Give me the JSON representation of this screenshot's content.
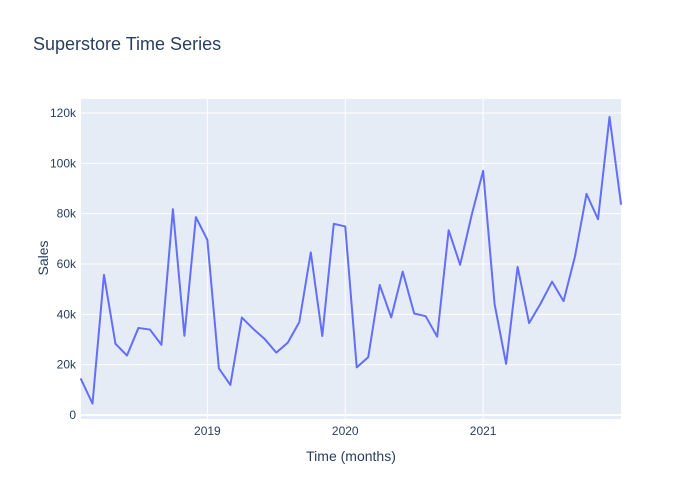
{
  "chart_data": {
    "type": "line",
    "title": "Superstore Time Series",
    "xlabel": "Time (months)",
    "ylabel": "Sales",
    "legend": "none",
    "grid": true,
    "ylim": [
      -1600,
      125600
    ],
    "x": [
      "2018-01",
      "2018-02",
      "2018-03",
      "2018-04",
      "2018-05",
      "2018-06",
      "2018-07",
      "2018-08",
      "2018-09",
      "2018-10",
      "2018-11",
      "2018-12",
      "2019-01",
      "2019-02",
      "2019-03",
      "2019-04",
      "2019-05",
      "2019-06",
      "2019-07",
      "2019-08",
      "2019-09",
      "2019-10",
      "2019-11",
      "2019-12",
      "2020-01",
      "2020-02",
      "2020-03",
      "2020-04",
      "2020-05",
      "2020-06",
      "2020-07",
      "2020-08",
      "2020-09",
      "2020-10",
      "2020-11",
      "2020-12",
      "2021-01",
      "2021-02",
      "2021-03",
      "2021-04",
      "2021-05",
      "2021-06",
      "2021-07",
      "2021-08",
      "2021-09",
      "2021-10",
      "2021-11",
      "2021-12"
    ],
    "series": [
      {
        "name": "Sales",
        "values": [
          14237,
          4520,
          55691,
          28295,
          23648,
          34595,
          33946,
          27909,
          81777,
          31453,
          78629,
          69545,
          18542,
          11951,
          38726,
          34195,
          30131,
          24797,
          28765,
          36898,
          64595,
          31404,
          75972,
          74920,
          18904,
          22978,
          51715,
          38750,
          56987,
          40344,
          39262,
          31115,
          73410,
          59687,
          79411,
          96999,
          43971,
          20301,
          58872,
          36521,
          44261,
          52981,
          45264,
          63120,
          87866,
          77776,
          118447,
          83829
        ]
      }
    ],
    "y_ticks": [
      {
        "label": "0",
        "value": 0
      },
      {
        "label": "20k",
        "value": 20000
      },
      {
        "label": "40k",
        "value": 40000
      },
      {
        "label": "60k",
        "value": 60000
      },
      {
        "label": "80k",
        "value": 80000
      },
      {
        "label": "100k",
        "value": 100000
      },
      {
        "label": "120k",
        "value": 120000
      }
    ],
    "x_ticks": [
      {
        "label": "2019",
        "month_index": 11
      },
      {
        "label": "2020",
        "month_index": 23
      },
      {
        "label": "2021",
        "month_index": 35
      }
    ],
    "colors": {
      "line": "#636efa",
      "plot_bg": "#e5ecf6",
      "paper_bg": "#ffffff",
      "grid": "#ffffff",
      "font": "#2a3f5f"
    }
  }
}
